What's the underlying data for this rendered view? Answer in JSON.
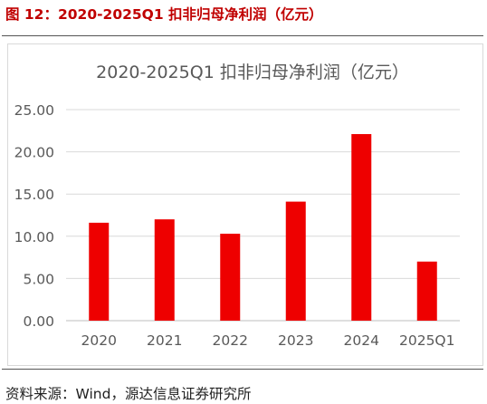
{
  "figure_label": "图 12：2020-2025Q1 扣非归母净利润（亿元）",
  "source_text": "资料来源：Wind，源达信息证券研究所",
  "colors": {
    "bar": "#ee0000",
    "heading": "#c00000"
  },
  "chart_data": {
    "type": "bar",
    "title": "2020-2025Q1 扣非归母净利润（亿元）",
    "xlabel": "",
    "ylabel": "",
    "categories": [
      "2020",
      "2021",
      "2022",
      "2023",
      "2024",
      "2025Q1"
    ],
    "values": [
      11.6,
      12.0,
      10.3,
      14.1,
      22.1,
      7.0
    ],
    "ylim": [
      0,
      25
    ],
    "yticks": [
      "0.00",
      "5.00",
      "10.00",
      "15.00",
      "20.00",
      "25.00"
    ],
    "grid": true,
    "legend": "none"
  }
}
